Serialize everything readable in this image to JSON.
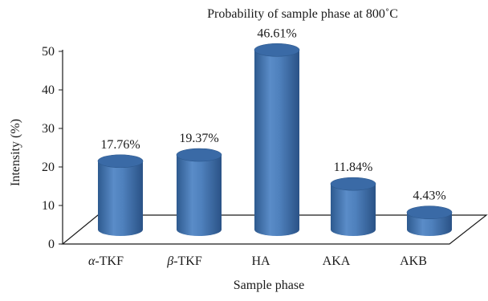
{
  "chart_data": {
    "type": "bar",
    "title": "Probability of sample phase at 800˚C",
    "xlabel": "Sample phase",
    "ylabel": "Intensity (%)",
    "ylim": [
      0,
      50
    ],
    "yticks": [
      "0",
      "10",
      "20",
      "30",
      "40",
      "50"
    ],
    "categories": [
      {
        "greek": "α",
        "rest": "-TKF"
      },
      {
        "greek": "β",
        "rest": "-TKF"
      },
      {
        "greek": "",
        "rest": "HA"
      },
      {
        "greek": "",
        "rest": "AKA"
      },
      {
        "greek": "",
        "rest": "AKB"
      }
    ],
    "values": [
      17.76,
      19.37,
      46.61,
      11.84,
      4.43
    ],
    "data_labels": [
      "17.76%",
      "19.37%",
      "46.61%",
      "11.84%",
      "4.43%"
    ],
    "bar_style": "3d-cylinder",
    "grid": false,
    "legend": "none",
    "colors": {
      "bar_dark": "#2e5a8f",
      "bar_mid": "#4f81bd",
      "bar_light": "#7aa6da",
      "bar_top": "#3a6aa6",
      "axis": "#1a1a1a"
    }
  }
}
